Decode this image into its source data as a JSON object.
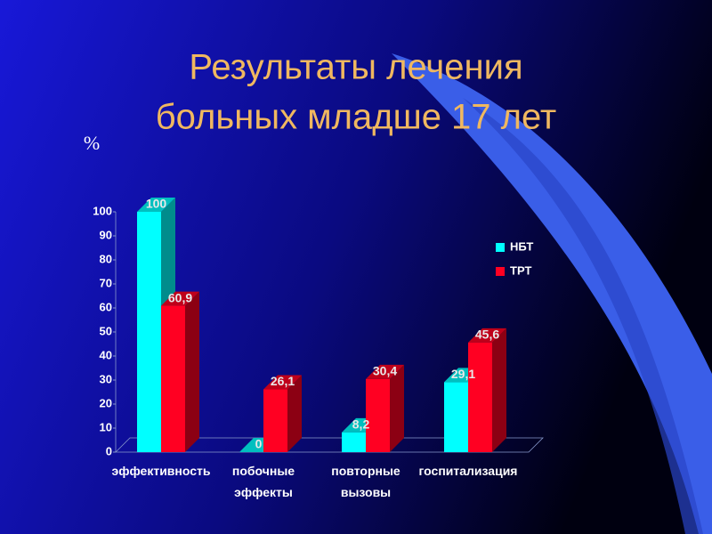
{
  "chart_data": {
    "type": "bar3d",
    "title": [
      "Результаты лечения",
      "больных младше 17 лет"
    ],
    "y_label": "%",
    "categories": [
      "эффективность",
      "побочные эффекты",
      "повторные вызовы",
      "госпитализация"
    ],
    "series": [
      {
        "name": "НБТ",
        "color": "#00ffff",
        "values": [
          100,
          0,
          8.2,
          29.1
        ],
        "value_labels": [
          "100",
          "0",
          "8,2",
          "29,1"
        ]
      },
      {
        "name": "ТРТ",
        "color": "#ff0022",
        "values": [
          60.9,
          26.1,
          30.4,
          45.6
        ],
        "value_labels": [
          "60,9",
          "26,1",
          "30,4",
          "45,6"
        ]
      }
    ],
    "ylim": [
      0,
      100
    ],
    "yticks": [
      0,
      10,
      20,
      30,
      40,
      50,
      60,
      70,
      80,
      90,
      100
    ],
    "legend": "right"
  }
}
